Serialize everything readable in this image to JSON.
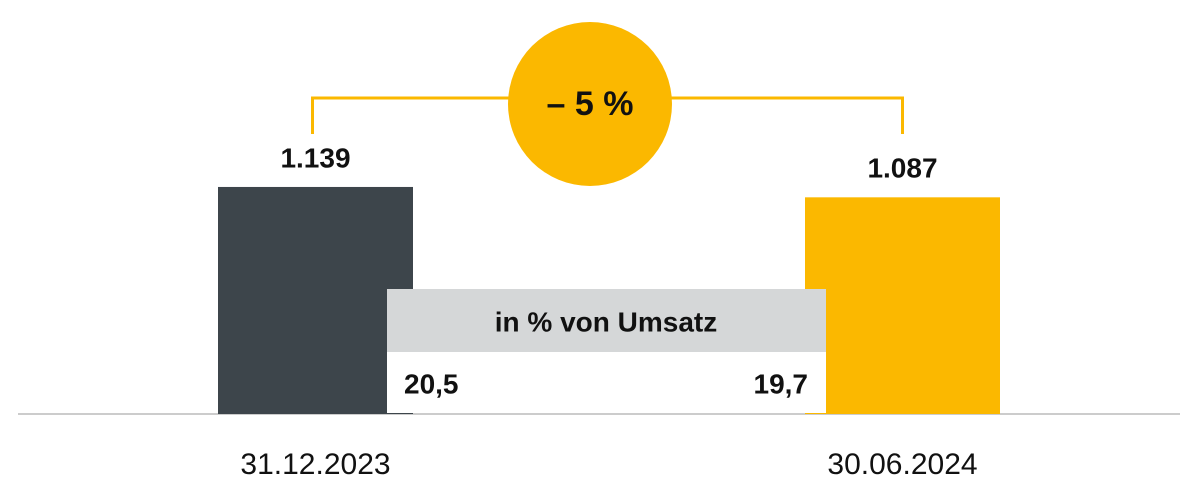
{
  "chart_data": {
    "type": "bar",
    "categories": [
      "31.12.2023",
      "30.06.2024"
    ],
    "values": [
      1139,
      1087
    ],
    "value_labels": [
      "1.139",
      "1.087"
    ],
    "colors": [
      "#3d454b",
      "#fbb800"
    ],
    "ylim": [
      0,
      1200
    ],
    "annotation": "– 5 %",
    "annotation_color": "#fbb800",
    "table": {
      "title": "in % von Umsatz",
      "cells": [
        "20,5",
        "19,7"
      ]
    }
  }
}
